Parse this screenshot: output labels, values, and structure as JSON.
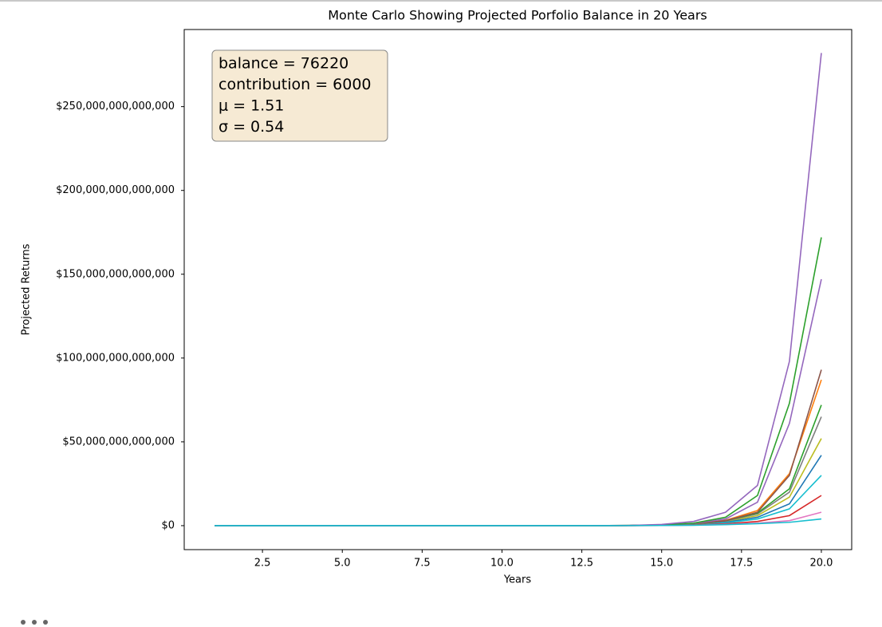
{
  "chart_data": {
    "type": "line",
    "title": "Monte Carlo Showing Projected Porfolio Balance in 20 Years",
    "xlabel": "Years",
    "ylabel": "Projected Returns",
    "annotation": [
      "balance = 76220",
      "contribution = 6000",
      "μ = 1.51",
      "σ = 0.54"
    ],
    "x": [
      1,
      2,
      3,
      4,
      5,
      6,
      7,
      8,
      9,
      10,
      11,
      12,
      13,
      14,
      15,
      16,
      17,
      18,
      19,
      20
    ],
    "xlim": [
      0.05,
      20.95
    ],
    "xticks": [
      2.5,
      {
        "value": 5,
        "label": "5.0"
      },
      7.5,
      {
        "value": 10,
        "label": "10.0"
      },
      12.5,
      {
        "value": 15,
        "label": "15.0"
      },
      17.5,
      {
        "value": 20,
        "label": "20.0"
      }
    ],
    "ylim": [
      -14300000000000,
      296000000000000
    ],
    "yticks": [
      {
        "value": 0,
        "label": "$0"
      },
      {
        "value": 50000000000000,
        "label": "$50,000,000,000,000"
      },
      {
        "value": 100000000000000,
        "label": "$100,000,000,000,000"
      },
      {
        "value": 150000000000000,
        "label": "$150,000,000,000,000"
      },
      {
        "value": 200000000000000,
        "label": "$200,000,000,000,000"
      },
      {
        "value": 250000000000000,
        "label": "$250,000,000,000,000"
      }
    ],
    "series": [
      {
        "color": "#bcbd22",
        "values": [
          76220,
          160000,
          450000,
          1300000,
          4000000,
          12000000,
          36000000,
          110000000,
          330000000,
          1000000000,
          3000000000,
          9000000000,
          25000000000,
          80000000000,
          250000000000,
          800000000000,
          2500000000000,
          6000000000000,
          17000000000000,
          52000000000000
        ]
      },
      {
        "color": "#1f77b4",
        "values": [
          76220,
          150000,
          420000,
          1200000,
          3600000,
          11000000,
          33000000,
          100000000,
          300000000,
          900000000,
          2700000000,
          8000000000,
          22000000000,
          70000000000,
          220000000000,
          700000000000,
          2000000000000,
          5000000000000,
          13000000000000,
          42000000000000
        ]
      },
      {
        "color": "#17becf",
        "values": [
          76220,
          140000,
          400000,
          1100000,
          3300000,
          10000000,
          30000000,
          90000000,
          270000000,
          800000000,
          2400000000,
          7000000000,
          20000000000,
          60000000000,
          180000000000,
          550000000000,
          1600000000000,
          4000000000000,
          10000000000000,
          30000000000000
        ]
      },
      {
        "color": "#d62728",
        "values": [
          76220,
          130000,
          370000,
          1000000,
          3000000,
          9000000,
          27000000,
          80000000,
          240000000,
          700000000,
          2100000000,
          6000000000,
          17000000000,
          50000000000,
          150000000000,
          400000000000,
          1100000000000,
          2500000000000,
          6000000000000,
          18000000000000
        ]
      },
      {
        "color": "#e377c2",
        "values": [
          76220,
          120000,
          340000,
          900000,
          2700000,
          8000000,
          24000000,
          70000000,
          200000000,
          600000000,
          1800000000,
          5000000000,
          14000000000,
          40000000000,
          110000000000,
          300000000000,
          700000000000,
          1500000000000,
          3000000000000,
          8000000000000
        ]
      },
      {
        "color": "#7f7f7f",
        "values": [
          76220,
          160000,
          460000,
          1300000,
          4100000,
          12000000,
          37000000,
          110000000,
          340000000,
          1000000000,
          3100000000,
          9500000000,
          28000000000,
          90000000000,
          280000000000,
          900000000000,
          2800000000000,
          7000000000000,
          20000000000000,
          65000000000000
        ]
      },
      {
        "color": "#2ca02c",
        "values": [
          76220,
          165000,
          470000,
          1350000,
          4200000,
          12500000,
          38000000,
          115000000,
          350000000,
          1050000000,
          3200000000,
          10000000000,
          30000000000,
          95000000000,
          300000000000,
          950000000000,
          3000000000000,
          7500000000000,
          22000000000000,
          72000000000000
        ]
      },
      {
        "color": "#ff7f0e",
        "values": [
          76220,
          170000,
          480000,
          1400000,
          4300000,
          13000000,
          40000000,
          120000000,
          360000000,
          1100000000,
          3400000000,
          11000000000,
          33000000000,
          100000000000,
          320000000000,
          1000000000000,
          3200000000000,
          9000000000000,
          31000000000000,
          87000000000000
        ]
      },
      {
        "color": "#8c564b",
        "values": [
          76220,
          170000,
          490000,
          1400000,
          4400000,
          13500000,
          41000000,
          125000000,
          380000000,
          1150000000,
          3500000000,
          11500000000,
          35000000000,
          110000000000,
          350000000000,
          1100000000000,
          3000000000000,
          8000000000000,
          30000000000000,
          93000000000000
        ]
      },
      {
        "color": "#9467bd",
        "values": [
          76220,
          175000,
          500000,
          1450000,
          4500000,
          14000000,
          42000000,
          130000000,
          400000000,
          1200000000,
          3700000000,
          12000000000,
          38000000000,
          120000000000,
          400000000000,
          1300000000000,
          4000000000000,
          14000000000000,
          61000000000000,
          147000000000000
        ]
      },
      {
        "color": "#2ca02c",
        "values": [
          76220,
          180000,
          510000,
          1500000,
          4600000,
          14500000,
          44000000,
          135000000,
          420000000,
          1300000000,
          4000000000,
          13000000000,
          42000000000,
          140000000000,
          500000000000,
          1500000000000,
          5000000000000,
          18000000000000,
          73000000000000,
          172000000000000
        ]
      },
      {
        "color": "#9467bd",
        "values": [
          76220,
          185000,
          520000,
          1550000,
          4800000,
          15000000,
          46000000,
          140000000,
          440000000,
          1400000000,
          4300000000,
          14000000000,
          45000000000,
          160000000000,
          700000000000,
          2500000000000,
          8000000000000,
          24000000000000,
          98000000000000,
          282000000000000
        ]
      },
      {
        "color": "#17becf",
        "values": [
          76220,
          120000,
          330000,
          880000,
          2600000,
          7800000,
          23000000,
          68000000,
          190000000,
          560000000,
          1600000000,
          4500000000,
          12000000000,
          33000000000,
          90000000000,
          250000000000,
          600000000000,
          1200000000000,
          2000000000000,
          4000000000000
        ]
      }
    ]
  }
}
